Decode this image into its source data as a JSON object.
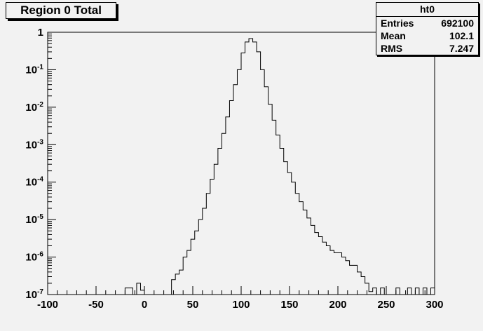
{
  "chart_data": {
    "type": "histogram",
    "title": "Region 0 Total",
    "xlabel": "",
    "ylabel": "",
    "xlim": [
      -100,
      300
    ],
    "ylim": [
      1e-07,
      1
    ],
    "yscale": "log",
    "grid": false,
    "x_ticks": [
      -100,
      -50,
      0,
      50,
      100,
      150,
      200,
      250,
      300
    ],
    "x_tick_labels": [
      "-100",
      "-50",
      "0",
      "50",
      "100",
      "150",
      "200",
      "250",
      "300"
    ],
    "y_ticks": [
      {
        "value": 1,
        "base": "1",
        "exp": ""
      },
      {
        "value": 0.1,
        "base": "10",
        "exp": "-1"
      },
      {
        "value": 0.01,
        "base": "10",
        "exp": "-2"
      },
      {
        "value": 0.001,
        "base": "10",
        "exp": "-3"
      },
      {
        "value": 0.0001,
        "base": "10",
        "exp": "-4"
      },
      {
        "value": 1e-05,
        "base": "10",
        "exp": "-5"
      },
      {
        "value": 1e-06,
        "base": "10",
        "exp": "-6"
      },
      {
        "value": 1e-07,
        "base": "10",
        "exp": "-7"
      }
    ],
    "bin_width": 4,
    "bin_starts": [
      -20,
      -16,
      -12,
      -8,
      -4,
      0,
      4,
      8,
      12,
      16,
      20,
      24,
      28,
      32,
      36,
      40,
      44,
      48,
      52,
      56,
      60,
      64,
      68,
      72,
      76,
      80,
      84,
      88,
      92,
      96,
      100,
      104,
      108,
      112,
      116,
      120,
      124,
      128,
      132,
      136,
      140,
      144,
      148,
      152,
      156,
      160,
      164,
      168,
      172,
      176,
      180,
      184,
      188,
      192,
      196,
      200,
      204,
      208,
      212,
      216,
      220,
      224,
      228,
      232,
      236,
      240,
      244,
      248,
      252,
      256,
      260,
      264,
      268,
      272,
      276,
      280,
      284,
      288,
      292,
      296
    ],
    "values": [
      1.5e-07,
      1.5e-07,
      1e-07,
      2e-07,
      1.3e-07,
      1e-07,
      1e-07,
      1e-07,
      1e-07,
      1e-07,
      1e-07,
      1e-07,
      2.5e-07,
      3.5e-07,
      4.5e-07,
      1e-06,
      1.5e-06,
      3e-06,
      5e-06,
      1e-05,
      2e-05,
      5e-05,
      0.00012,
      0.0003,
      0.0008,
      0.002,
      0.0055,
      0.015,
      0.04,
      0.1,
      0.28,
      0.55,
      0.68,
      0.55,
      0.3,
      0.1,
      0.035,
      0.012,
      0.0045,
      0.0018,
      0.0008,
      0.00035,
      0.00018,
      0.0001,
      5e-05,
      3e-05,
      1.8e-05,
      1.1e-05,
      7e-06,
      4.5e-06,
      3.5e-06,
      2.5e-06,
      2e-06,
      1.5e-06,
      1.3e-06,
      1.3e-06,
      1e-06,
      8e-07,
      6e-07,
      6e-07,
      4e-07,
      3e-07,
      2e-07,
      1.2e-07,
      1.5e-07,
      1e-07,
      1.5e-07,
      1e-07,
      1e-07,
      1e-07,
      1.5e-07,
      1e-07,
      1e-07,
      1.5e-07,
      1e-07,
      1.5e-07,
      1e-07,
      1.5e-07,
      1e-07,
      1.5e-07
    ],
    "stats": {
      "name": "ht0",
      "rows": [
        {
          "label": "Entries",
          "value": "692100"
        },
        {
          "label": "Mean",
          "value": "102.1"
        },
        {
          "label": "RMS",
          "value": "7.247"
        }
      ]
    }
  }
}
